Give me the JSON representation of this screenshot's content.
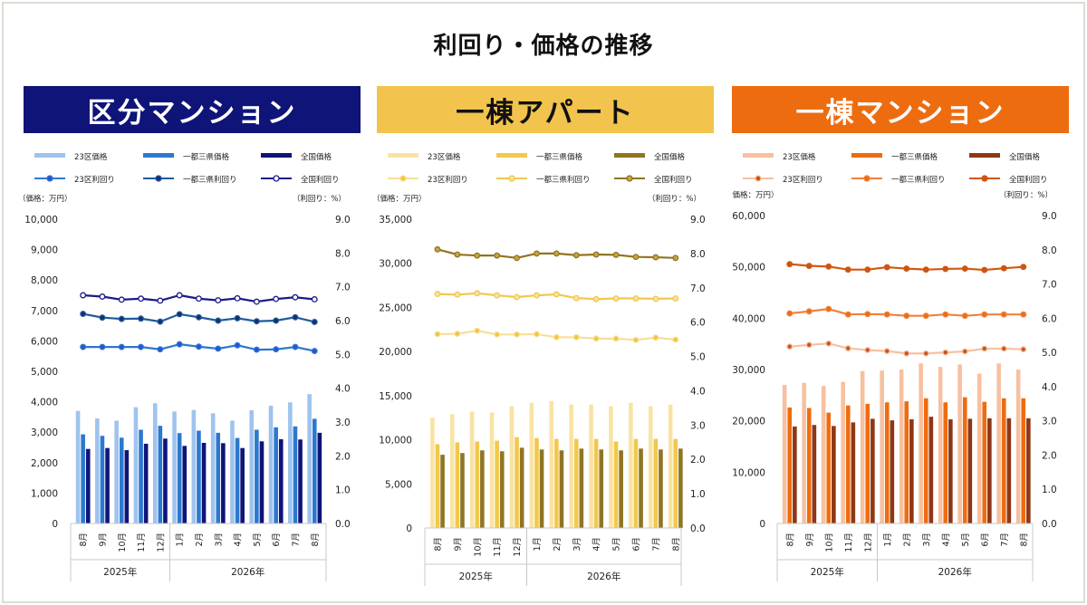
{
  "page_title": "利回り・価格の推移",
  "chart_data": [
    {
      "type": "bar",
      "panel_title": "区分マンション",
      "colors": {
        "header_bg": "#0f1478",
        "header_text": "#ffffff",
        "price_23": "#9ec3ee",
        "price_capital": "#2d78cf",
        "price_national": "#0f1478",
        "yield_23": "#2d78cf",
        "yield_capital": "#1f5c9e",
        "yield_national": "#1a1b8a",
        "marker_fill_23": "#2d4fd8",
        "marker_fill_capital": "#1a2a6b",
        "marker_fill_national": "#ffffff"
      },
      "legend": {
        "price": [
          "23区価格",
          "一都三県価格",
          "全国価格"
        ],
        "yield": [
          "23区利回り",
          "一都三県利回り",
          "全国利回り"
        ]
      },
      "y_left_label": "（価格：万円）",
      "y_right_label": "（利回り：%）",
      "y_left_ticks": [
        "0",
        "1,000",
        "2,000",
        "3,000",
        "4,000",
        "5,000",
        "6,000",
        "7,000",
        "8,000",
        "9,000",
        "10,000"
      ],
      "y_right_ticks": [
        "0.0",
        "1.0",
        "2.0",
        "3.0",
        "4.0",
        "5.0",
        "6.0",
        "7.0",
        "8.0",
        "9.0"
      ],
      "ylim": [
        0,
        10000
      ],
      "y2lim": [
        0,
        9
      ],
      "categories": [
        "8月",
        "9月",
        "10月",
        "11月",
        "12月",
        "1月",
        "2月",
        "3月",
        "4月",
        "5月",
        "6月",
        "7月",
        "8月"
      ],
      "year_groups": [
        {
          "label": "2025年",
          "count": 5
        },
        {
          "label": "2026年",
          "count": 8
        }
      ],
      "price_series": [
        {
          "name": "23区価格",
          "values": [
            3700,
            3450,
            3380,
            3820,
            3950,
            3680,
            3730,
            3620,
            3380,
            3720,
            3870,
            3980,
            4250
          ]
        },
        {
          "name": "一都三県価格",
          "values": [
            2930,
            2880,
            2820,
            3080,
            3210,
            2970,
            3050,
            2980,
            2810,
            3080,
            3160,
            3190,
            3440
          ]
        },
        {
          "name": "全国価格",
          "values": [
            2450,
            2480,
            2410,
            2620,
            2790,
            2550,
            2650,
            2640,
            2480,
            2700,
            2770,
            2760,
            2980
          ]
        }
      ],
      "yield_series": [
        {
          "name": "23区利回り",
          "values": [
            5.22,
            5.22,
            5.22,
            5.22,
            5.15,
            5.3,
            5.23,
            5.17,
            5.27,
            5.14,
            5.15,
            5.22,
            5.1
          ]
        },
        {
          "name": "一都三県利回り",
          "values": [
            6.2,
            6.09,
            6.05,
            6.06,
            5.97,
            6.19,
            6.1,
            6.0,
            6.07,
            5.98,
            6.0,
            6.1,
            5.96
          ]
        },
        {
          "name": "全国利回り",
          "values": [
            6.75,
            6.71,
            6.62,
            6.65,
            6.59,
            6.75,
            6.65,
            6.6,
            6.66,
            6.56,
            6.64,
            6.69,
            6.63
          ]
        }
      ]
    },
    {
      "type": "bar",
      "panel_title": "一棟アパート",
      "colors": {
        "header_bg": "#f2c44d",
        "header_text": "#111111",
        "price_23": "#f9e3a4",
        "price_capital": "#f2c84d",
        "price_national": "#8f7524",
        "yield_23": "#f7df98",
        "yield_capital": "#f2c84d",
        "yield_national": "#8f7524",
        "marker_fill_23": "#f0c63a",
        "marker_fill_capital": "#f7e4a4",
        "marker_fill_national": "#c9a53e"
      },
      "legend": {
        "price": [
          "23区価格",
          "一都三県価格",
          "全国価格"
        ],
        "yield": [
          "23区利回り",
          "一都三県利回り",
          "全国利回り"
        ]
      },
      "y_left_label": "（価格：万円）",
      "y_right_label": "（利回り：%）",
      "y_left_ticks": [
        "0",
        "5,000",
        "10,000",
        "15,000",
        "20,000",
        "25,000",
        "30,000",
        "35,000"
      ],
      "y_right_ticks": [
        "0.0",
        "1.0",
        "2.0",
        "3.0",
        "4.0",
        "5.0",
        "6.0",
        "7.0",
        "8.0",
        "9.0"
      ],
      "ylim": [
        0,
        35000
      ],
      "y2lim": [
        0,
        9
      ],
      "categories": [
        "8月",
        "9月",
        "10月",
        "11月",
        "12月",
        "1月",
        "2月",
        "3月",
        "4月",
        "5月",
        "6月",
        "7月",
        "8月"
      ],
      "year_groups": [
        {
          "label": "2025年",
          "count": 5
        },
        {
          "label": "2026年",
          "count": 8
        }
      ],
      "price_series": [
        {
          "name": "23区価格",
          "values": [
            12500,
            12900,
            13200,
            13100,
            13800,
            14200,
            14400,
            14000,
            14000,
            13800,
            14200,
            13800,
            14000
          ]
        },
        {
          "name": "一都三県価格",
          "values": [
            9500,
            9700,
            9800,
            9900,
            10300,
            10200,
            10100,
            10100,
            10100,
            9800,
            10100,
            10100,
            10100
          ]
        },
        {
          "name": "全国価格",
          "values": [
            8300,
            8500,
            8800,
            8700,
            9100,
            8900,
            8800,
            9000,
            8900,
            8800,
            9000,
            8900,
            9000
          ]
        }
      ],
      "yield_series": [
        {
          "name": "23区利回り",
          "values": [
            5.65,
            5.66,
            5.75,
            5.64,
            5.64,
            5.65,
            5.56,
            5.56,
            5.52,
            5.52,
            5.48,
            5.55,
            5.49
          ]
        },
        {
          "name": "一都三県利回り",
          "values": [
            6.82,
            6.8,
            6.84,
            6.78,
            6.73,
            6.78,
            6.81,
            6.7,
            6.67,
            6.69,
            6.69,
            6.68,
            6.69
          ]
        },
        {
          "name": "全国利回り",
          "values": [
            8.12,
            7.97,
            7.94,
            7.94,
            7.87,
            8.0,
            8.0,
            7.95,
            7.97,
            7.96,
            7.9,
            7.89,
            7.87
          ]
        }
      ]
    },
    {
      "type": "bar",
      "panel_title": "一棟マンション",
      "colors": {
        "header_bg": "#ee6c10",
        "header_text": "#ffffff",
        "price_23": "#f7c0a0",
        "price_capital": "#ee6c10",
        "price_national": "#8e3716",
        "yield_23": "#f7c0a0",
        "yield_capital": "#f0813a",
        "yield_national": "#d2580f",
        "marker_fill_23": "#c9541c",
        "marker_fill_capital": "#ee6c10",
        "marker_fill_national": "#c9541c"
      },
      "legend": {
        "price": [
          "23区価格",
          "一都三県価格",
          "全国価格"
        ],
        "yield": [
          "23区利回り",
          "一都三県利回り",
          "全国利回り"
        ]
      },
      "y_left_label": "（価格：万円）",
      "y_right_label": "（利回り：%）",
      "y_left_ticks": [
        "0",
        "10,000",
        "20,000",
        "30,000",
        "40,000",
        "50,000",
        "60,000"
      ],
      "y_right_ticks": [
        "0.0",
        "1.0",
        "2.0",
        "3.0",
        "4.0",
        "5.0",
        "6.0",
        "7.0",
        "8.0",
        "9.0"
      ],
      "ylim": [
        0,
        60000
      ],
      "y2lim": [
        0,
        9
      ],
      "categories": [
        "8月",
        "9月",
        "10月",
        "11月",
        "12月",
        "1月",
        "2月",
        "3月",
        "4月",
        "5月",
        "6月",
        "7月",
        "8月"
      ],
      "year_groups": [
        {
          "label": "2025年",
          "count": 5
        },
        {
          "label": "2026年",
          "count": 8
        }
      ],
      "price_series": [
        {
          "name": "23区価格",
          "values": [
            27000,
            27400,
            26800,
            27600,
            29700,
            29800,
            30000,
            31200,
            30500,
            31000,
            29200,
            31200,
            30000
          ]
        },
        {
          "name": "一都三県価格",
          "values": [
            22600,
            22500,
            21600,
            23000,
            23300,
            23600,
            23800,
            24400,
            23600,
            24600,
            23700,
            24400,
            24400
          ]
        },
        {
          "name": "全国価格",
          "values": [
            18900,
            19200,
            19000,
            19700,
            20400,
            20100,
            20300,
            20800,
            20300,
            20400,
            20500,
            20500,
            20500
          ]
        }
      ],
      "yield_series": [
        {
          "name": "23区利回り",
          "values": [
            5.17,
            5.22,
            5.26,
            5.12,
            5.07,
            5.04,
            4.97,
            4.97,
            5.0,
            5.03,
            5.11,
            5.11,
            5.09
          ]
        },
        {
          "name": "一都三県利回り",
          "values": [
            6.14,
            6.2,
            6.27,
            6.11,
            6.12,
            6.11,
            6.07,
            6.07,
            6.11,
            6.07,
            6.11,
            6.11,
            6.11
          ]
        },
        {
          "name": "全国利回り",
          "values": [
            7.58,
            7.53,
            7.51,
            7.42,
            7.42,
            7.49,
            7.45,
            7.42,
            7.44,
            7.45,
            7.41,
            7.46,
            7.5
          ]
        }
      ]
    }
  ]
}
